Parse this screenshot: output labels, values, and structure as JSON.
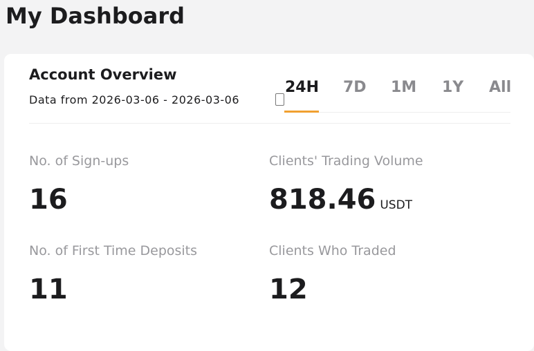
{
  "header": {
    "title": "My Dashboard"
  },
  "card": {
    "title": "Account Overview",
    "date_range": "Data from 2026-03-06 - 2026-03-06",
    "tabs": [
      "24H",
      "7D",
      "1M",
      "1Y",
      "All"
    ],
    "metrics": [
      {
        "label": "No. of Sign-ups",
        "value": "16"
      },
      {
        "label": "Clients' Trading Volume",
        "value": "818.46",
        "unit": "USDT"
      },
      {
        "label": "No. of First Time Deposits",
        "value": "11"
      },
      {
        "label": "Clients Who Traded",
        "value": "12"
      }
    ]
  }
}
